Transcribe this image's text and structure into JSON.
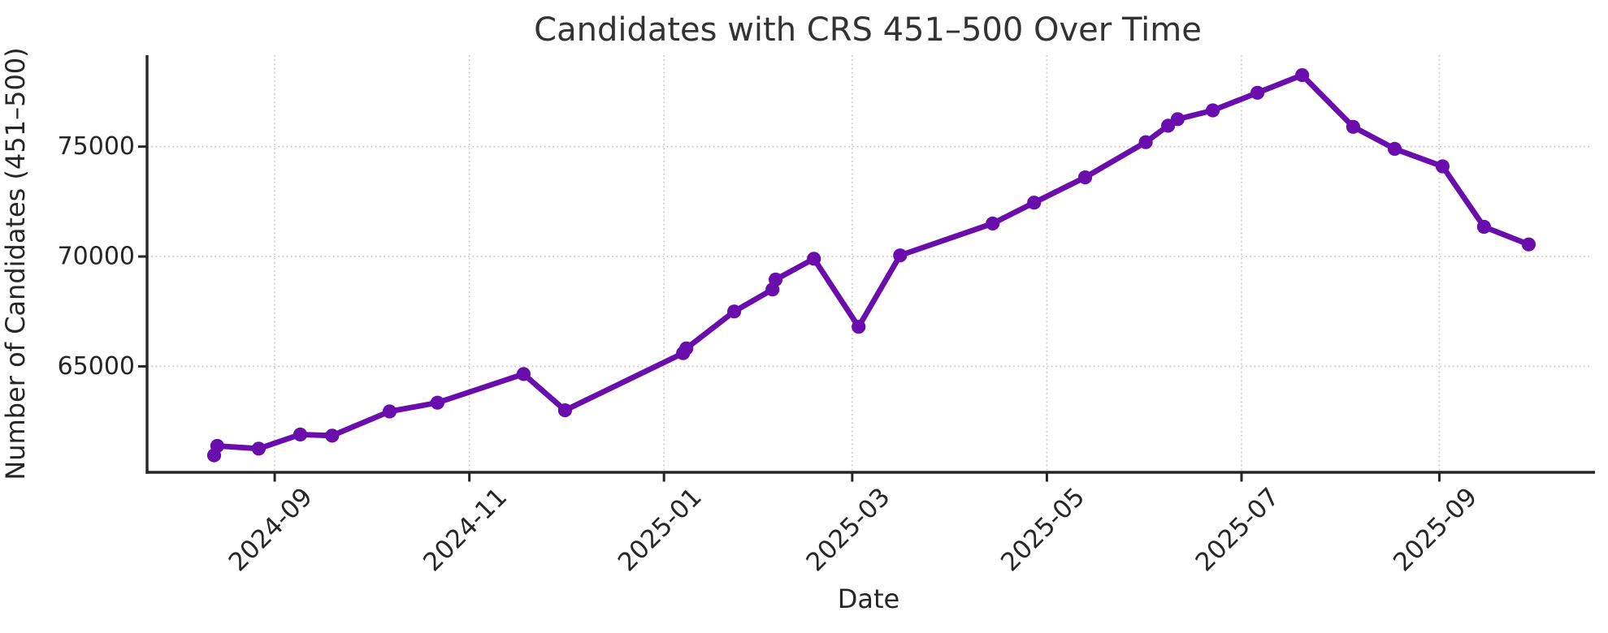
{
  "chart_data": {
    "type": "line",
    "title": "Candidates with CRS 451–500 Over Time",
    "xlabel": "Date",
    "ylabel": "Number of Candidates (451–500)",
    "grid": "dotted",
    "legend_position": "none",
    "marker": "circle",
    "colors": {
      "line": "#6A0DAD",
      "marker": "#6A0DAD",
      "grid": "#c9c9c9",
      "axis": "#262626",
      "tick_label": "#262626",
      "title_text": "#333333",
      "background": "#ffffff"
    },
    "xlim": [
      "2024-07-23",
      "2025-10-18"
    ],
    "ylim": [
      60180,
      79160
    ],
    "x_ticks": [
      {
        "pos": "2024-09-01",
        "label": "2024-09"
      },
      {
        "pos": "2024-11-01",
        "label": "2024-11"
      },
      {
        "pos": "2025-01-01",
        "label": "2025-01"
      },
      {
        "pos": "2025-03-01",
        "label": "2025-03"
      },
      {
        "pos": "2025-05-01",
        "label": "2025-05"
      },
      {
        "pos": "2025-07-01",
        "label": "2025-07"
      },
      {
        "pos": "2025-09-01",
        "label": "2025-09"
      }
    ],
    "y_ticks": [
      {
        "pos": 65000,
        "label": "65000"
      },
      {
        "pos": 70000,
        "label": "70000"
      },
      {
        "pos": 75000,
        "label": "75000"
      }
    ],
    "series": [
      {
        "name": "Candidates with CRS 451–500",
        "x": [
          "2024-08-13",
          "2024-08-14",
          "2024-08-27",
          "2024-09-09",
          "2024-09-19",
          "2024-10-07",
          "2024-10-22",
          "2024-11-18",
          "2024-12-01",
          "2025-01-07",
          "2025-01-08",
          "2025-01-23",
          "2025-02-04",
          "2025-02-05",
          "2025-02-17",
          "2025-03-03",
          "2025-03-16",
          "2025-04-14",
          "2025-04-27",
          "2025-05-13",
          "2025-06-01",
          "2025-06-08",
          "2025-06-11",
          "2025-06-22",
          "2025-07-06",
          "2025-07-20",
          "2025-08-05",
          "2025-08-18",
          "2025-09-02",
          "2025-09-15",
          "2025-09-29"
        ],
        "values": [
          60950,
          61380,
          61260,
          61900,
          61850,
          62950,
          63350,
          64650,
          63000,
          65600,
          65820,
          67500,
          68500,
          68950,
          69900,
          66800,
          70050,
          71500,
          72450,
          73600,
          75200,
          75950,
          76250,
          76650,
          77450,
          78250,
          75900,
          74900,
          74100,
          71350,
          70550
        ]
      }
    ]
  }
}
